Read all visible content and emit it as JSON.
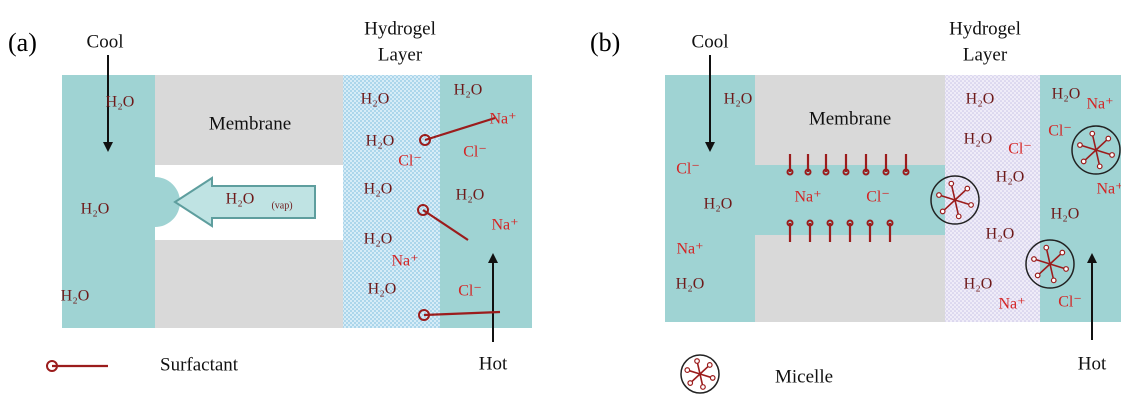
{
  "panels": [
    {
      "label": "(a)",
      "cool": "Cool",
      "hydrogel": [
        "Hydrogel",
        "Layer"
      ],
      "membrane": "Membrane",
      "vapor": "H₂O",
      "vapor_phase": "(vap)",
      "hot": "Hot",
      "legend": "Surfactant",
      "species": [
        "H₂O",
        "H₂O",
        "H₂O",
        "H₂O",
        "H₂O",
        "Cl⁻",
        "H₂O",
        "H₂O",
        "Na⁺",
        "H₂O",
        "H₂O",
        "Na⁺",
        "Cl⁻",
        "H₂O",
        "Na⁺",
        "Cl⁻"
      ]
    },
    {
      "label": "(b)",
      "cool": "Cool",
      "hydrogel": [
        "Hydrogel",
        "Layer"
      ],
      "membrane": "Membrane",
      "hot": "Hot",
      "legend": "Micelle",
      "species": [
        "H₂O",
        "Cl⁻",
        "H₂O",
        "Na⁺",
        "H₂O",
        "Na⁺",
        "Cl⁻",
        "H₂O",
        "H₂O",
        "Cl⁻",
        "H₂O",
        "H₂O",
        "H₂O",
        "Na⁺",
        "H₂O",
        "Na⁺",
        "Cl⁻",
        "Na⁺",
        "H₂O",
        "Cl⁻"
      ]
    }
  ]
}
